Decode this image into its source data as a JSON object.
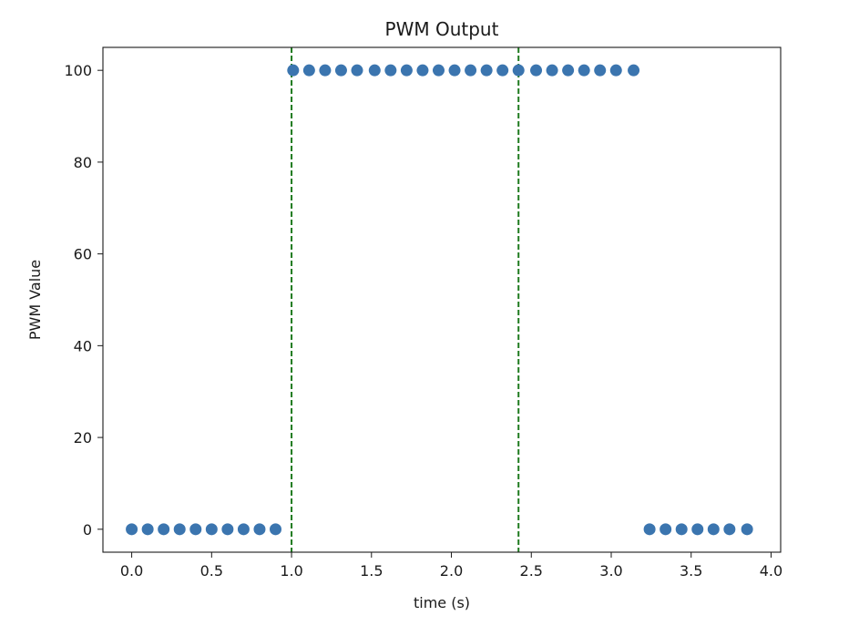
{
  "chart_data": {
    "type": "scatter",
    "title": "PWM Output",
    "xlabel": "time (s)",
    "ylabel": "PWM Value",
    "xlim": [
      -0.18,
      4.06
    ],
    "ylim": [
      -5,
      105
    ],
    "xticks": [
      "0.0",
      "0.5",
      "1.0",
      "1.5",
      "2.0",
      "2.5",
      "3.0",
      "3.5",
      "4.0"
    ],
    "yticks": [
      "0",
      "20",
      "40",
      "60",
      "80",
      "100"
    ],
    "grid": false,
    "marker_color": "#3b75af",
    "vline_color": "#1f7a1f",
    "vlines": [
      1.0,
      2.42
    ],
    "series": [
      {
        "x": [
          0.0,
          0.1,
          0.2,
          0.3,
          0.4,
          0.5,
          0.6,
          0.7,
          0.8,
          0.9,
          1.01,
          1.11,
          1.21,
          1.31,
          1.41,
          1.52,
          1.62,
          1.72,
          1.82,
          1.92,
          2.02,
          2.12,
          2.22,
          2.32,
          2.42,
          2.53,
          2.63,
          2.73,
          2.83,
          2.93,
          3.03,
          3.14,
          3.24,
          3.34,
          3.44,
          3.54,
          3.64,
          3.74,
          3.85
        ],
        "y": [
          0,
          0,
          0,
          0,
          0,
          0,
          0,
          0,
          0,
          0,
          100,
          100,
          100,
          100,
          100,
          100,
          100,
          100,
          100,
          100,
          100,
          100,
          100,
          100,
          100,
          100,
          100,
          100,
          100,
          100,
          100,
          100,
          0,
          0,
          0,
          0,
          0,
          0,
          0
        ]
      }
    ]
  }
}
